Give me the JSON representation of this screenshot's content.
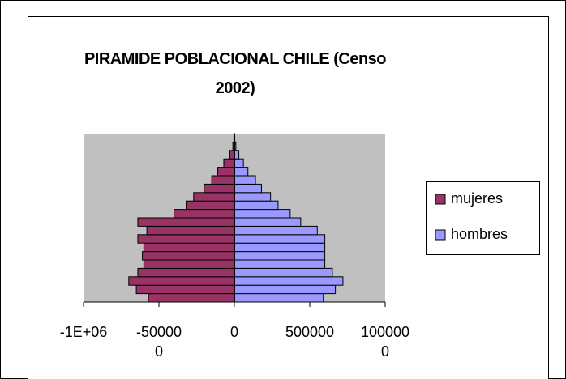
{
  "chart_data": {
    "type": "pyramid",
    "title": "PIRAMIDE POBLACIONAL CHILE (Censo 2002)",
    "series": [
      {
        "name": "mujeres",
        "color": "#993366",
        "values": [
          -570000,
          -650000,
          -700000,
          -640000,
          -600000,
          -610000,
          -600000,
          -640000,
          -580000,
          -640000,
          -400000,
          -320000,
          -270000,
          -200000,
          -150000,
          -110000,
          -70000,
          -30000,
          -10000,
          -3000
        ]
      },
      {
        "name": "hombres",
        "color": "#9999ff",
        "values": [
          590000,
          670000,
          720000,
          650000,
          600000,
          600000,
          600000,
          600000,
          550000,
          440000,
          370000,
          290000,
          240000,
          180000,
          140000,
          90000,
          60000,
          30000,
          10000,
          3000
        ]
      }
    ],
    "xlim": [
      -1000000,
      1000000
    ],
    "xticks": [
      {
        "value": -1000000,
        "label": "-1E+06"
      },
      -500000,
      0,
      500000,
      1000000
    ],
    "plot_color": "#c0c0c0",
    "legend": "right"
  }
}
